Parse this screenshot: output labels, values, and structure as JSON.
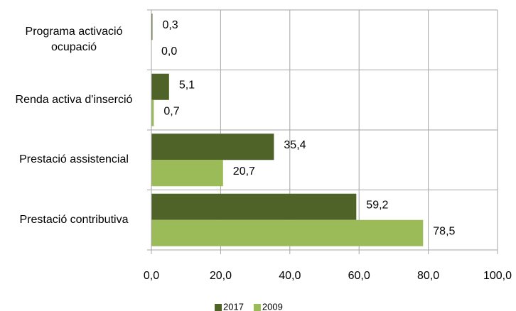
{
  "chart_data": {
    "type": "hbar",
    "categories": [
      "Programa activació ocupació",
      "Renda activa d'inserció",
      "Prestació assistencial",
      "Prestació contributiva"
    ],
    "series": [
      {
        "name": "2017",
        "color": "#4f6228",
        "values": [
          0.3,
          5.1,
          35.4,
          59.2
        ],
        "value_labels": [
          "0,3",
          "5,1",
          "35,4",
          "59,2"
        ]
      },
      {
        "name": "2009",
        "color": "#9bbb59",
        "values": [
          0.0,
          0.7,
          20.7,
          78.5
        ],
        "value_labels": [
          "0,0",
          "0,7",
          "20,7",
          "78,5"
        ]
      }
    ],
    "xlim": [
      0,
      100
    ],
    "xticks": [
      {
        "value": 0,
        "label": "0,0"
      },
      {
        "value": 20,
        "label": "20,0"
      },
      {
        "value": 40,
        "label": "40,0"
      },
      {
        "value": 60,
        "label": "60,0"
      },
      {
        "value": 80,
        "label": "80,0"
      },
      {
        "value": 100,
        "label": "100,0"
      }
    ],
    "grid": true,
    "legend": "bottom"
  }
}
